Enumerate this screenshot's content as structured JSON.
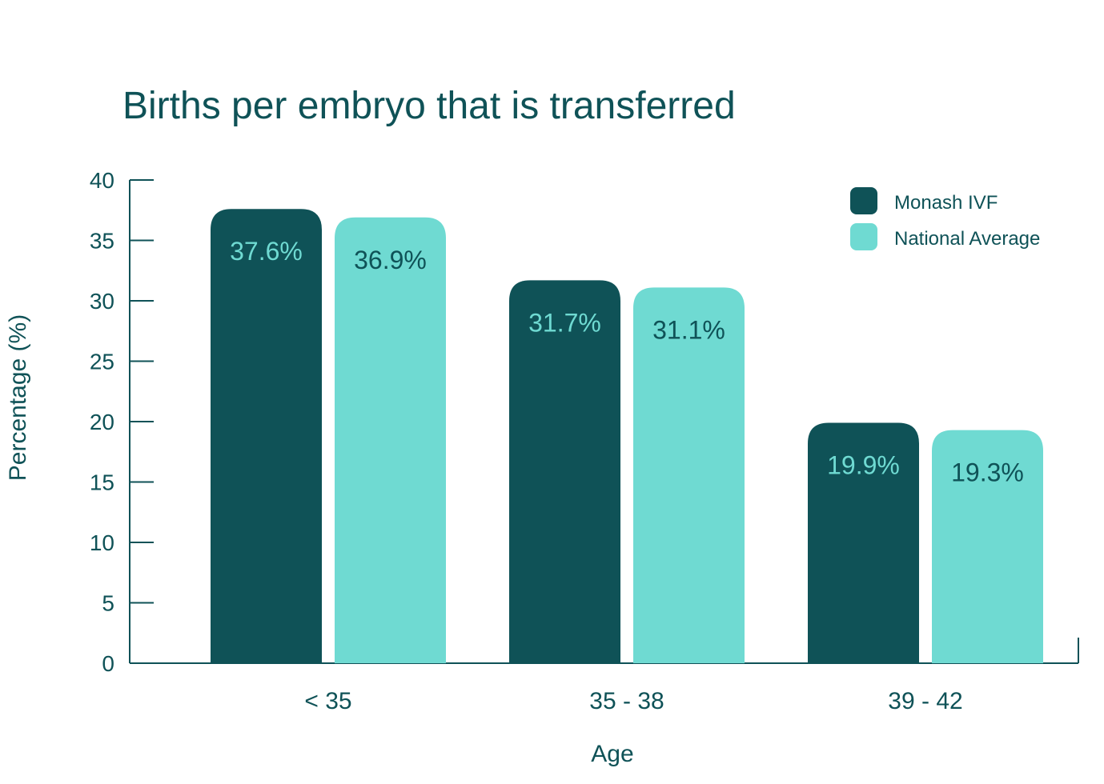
{
  "chart_data": {
    "type": "bar",
    "title": "Births per embryo that is transferred",
    "xlabel": "Age",
    "ylabel": "Percentage (%)",
    "ylim": [
      0,
      40
    ],
    "yticks": [
      0,
      5,
      10,
      15,
      20,
      25,
      30,
      35,
      40
    ],
    "ytick_labels": [
      "0",
      "5",
      "10",
      "15",
      "20",
      "25",
      "30",
      "35",
      "40"
    ],
    "categories": [
      "< 35",
      "35 - 38",
      "39 - 42"
    ],
    "series": [
      {
        "name": "Monash IVF",
        "color": "#0f5257",
        "label_color": "#6fdad2",
        "values": [
          37.6,
          31.7,
          19.9
        ],
        "labels": [
          "37.6%",
          "31.7%",
          "19.9%"
        ]
      },
      {
        "name": "National Average",
        "color": "#6fdad2",
        "label_color": "#0f5257",
        "values": [
          36.9,
          31.1,
          19.3
        ],
        "labels": [
          "36.9%",
          "31.1%",
          "19.3%"
        ]
      }
    ],
    "legend_position": "top-right",
    "grid": false,
    "axis_color": "#0f5257"
  }
}
